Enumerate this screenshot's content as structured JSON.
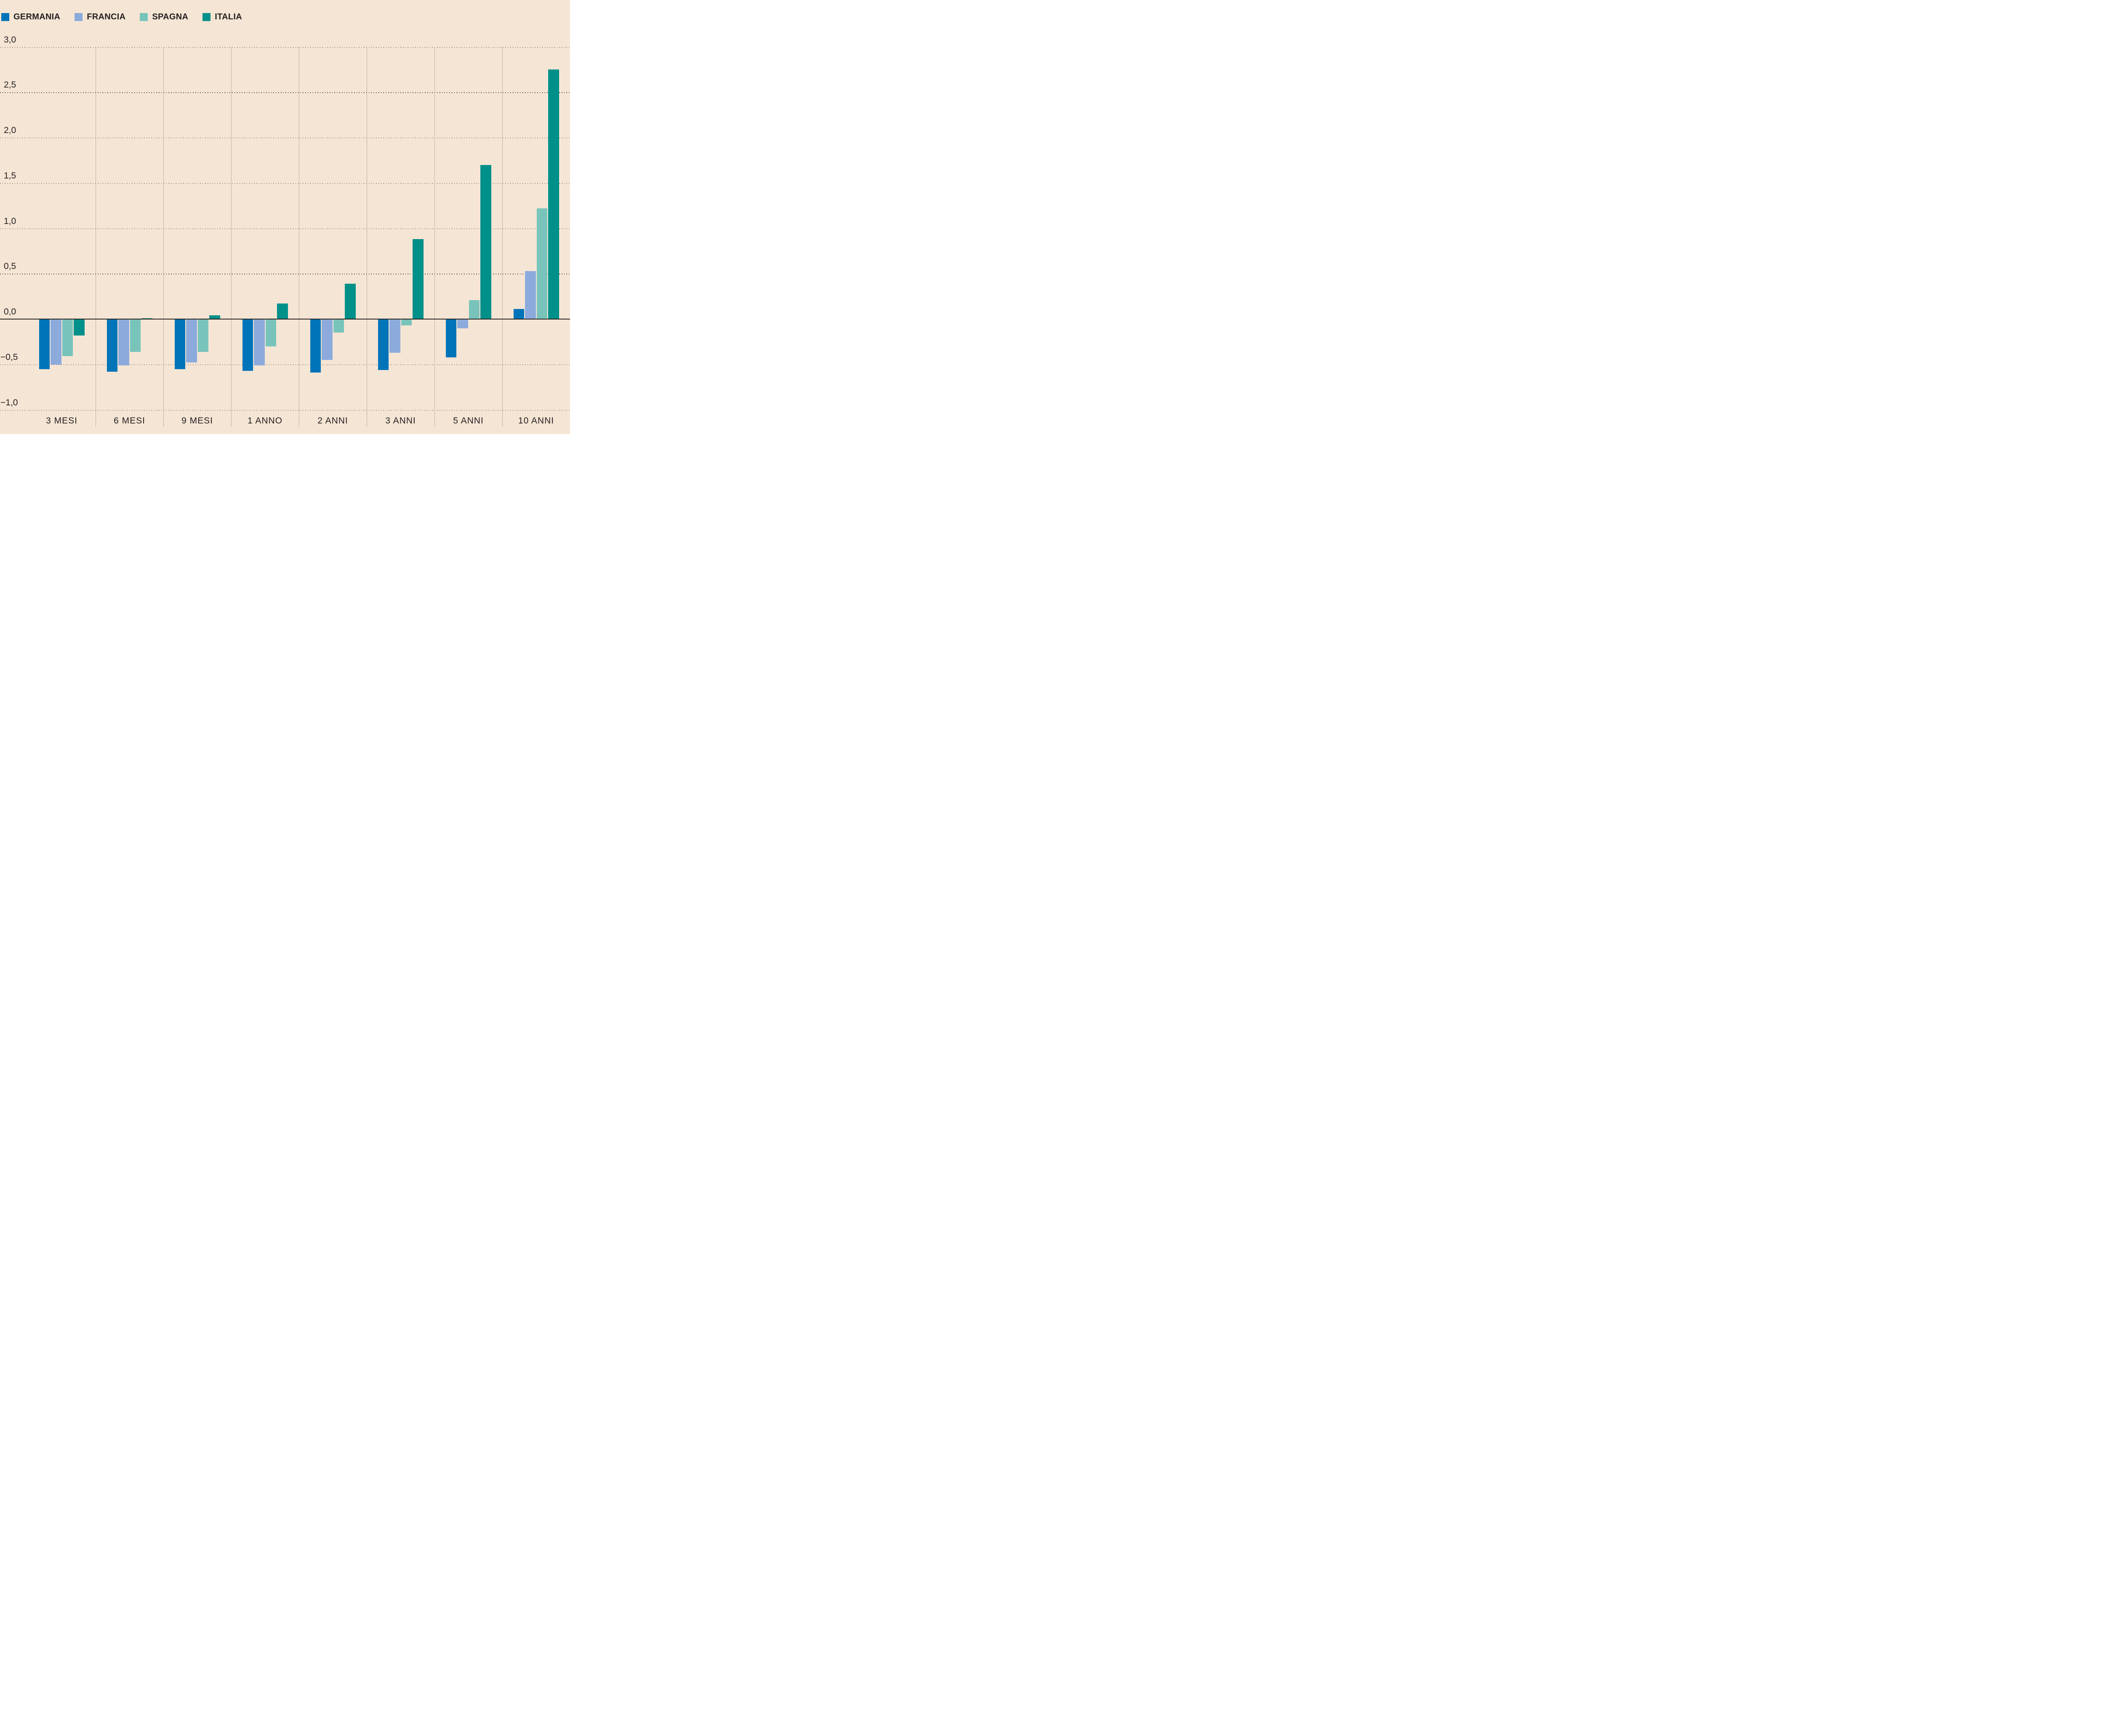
{
  "legend": {
    "items": [
      {
        "label": "GERMANIA",
        "color": "#0074b9",
        "swatch_icon": "square-swatch"
      },
      {
        "label": "FRANCIA",
        "color": "#8cabdc",
        "swatch_icon": "square-swatch"
      },
      {
        "label": "SPAGNA",
        "color": "#78c4bb",
        "swatch_icon": "square-swatch"
      },
      {
        "label": "ITALIA",
        "color": "#00908a",
        "swatch_icon": "square-swatch"
      }
    ]
  },
  "chart_data": {
    "type": "bar",
    "title": "",
    "xlabel": "",
    "ylabel": "",
    "categories": [
      "3 MESI",
      "6 MESI",
      "9 MESI",
      "1 ANNO",
      "2 ANNI",
      "3 ANNI",
      "5 ANNI",
      "10 ANNI"
    ],
    "series": [
      {
        "name": "GERMANIA",
        "color": "#0074b9",
        "values": [
          -0.55,
          -0.58,
          -0.55,
          -0.57,
          -0.59,
          -0.56,
          -0.42,
          0.11
        ]
      },
      {
        "name": "FRANCIA",
        "color": "#8cabdc",
        "values": [
          -0.5,
          -0.51,
          -0.48,
          -0.51,
          -0.45,
          -0.37,
          -0.1,
          0.53
        ]
      },
      {
        "name": "SPAGNA",
        "color": "#78c4bb",
        "values": [
          -0.41,
          -0.36,
          -0.36,
          -0.3,
          -0.15,
          -0.07,
          0.21,
          1.22
        ]
      },
      {
        "name": "ITALIA",
        "color": "#00908a",
        "values": [
          -0.18,
          0.01,
          0.04,
          0.17,
          0.39,
          0.88,
          1.7,
          2.75
        ]
      }
    ],
    "ylim": [
      -1.0,
      3.0
    ],
    "ytick_step": 0.5,
    "yticks": [
      {
        "value": 3.0,
        "label": "3,0"
      },
      {
        "value": 2.5,
        "label": "2,5"
      },
      {
        "value": 2.0,
        "label": "2,0"
      },
      {
        "value": 1.5,
        "label": "1,5"
      },
      {
        "value": 1.0,
        "label": "1,0"
      },
      {
        "value": 0.5,
        "label": "0,5"
      },
      {
        "value": 0.0,
        "label": "0,0"
      },
      {
        "value": -0.5,
        "label": "−0,5"
      },
      {
        "value": -1.0,
        "label": "−1,0"
      }
    ],
    "grid": "horizontal-dotted",
    "legend_position": "top-left",
    "baseline": 0
  },
  "colors": {
    "background": "#f5e5d4",
    "grid_dot": "#1c1c1c",
    "zero_axis": "#27231f",
    "panel_divider": "#bfb09a",
    "text": "#242021"
  }
}
